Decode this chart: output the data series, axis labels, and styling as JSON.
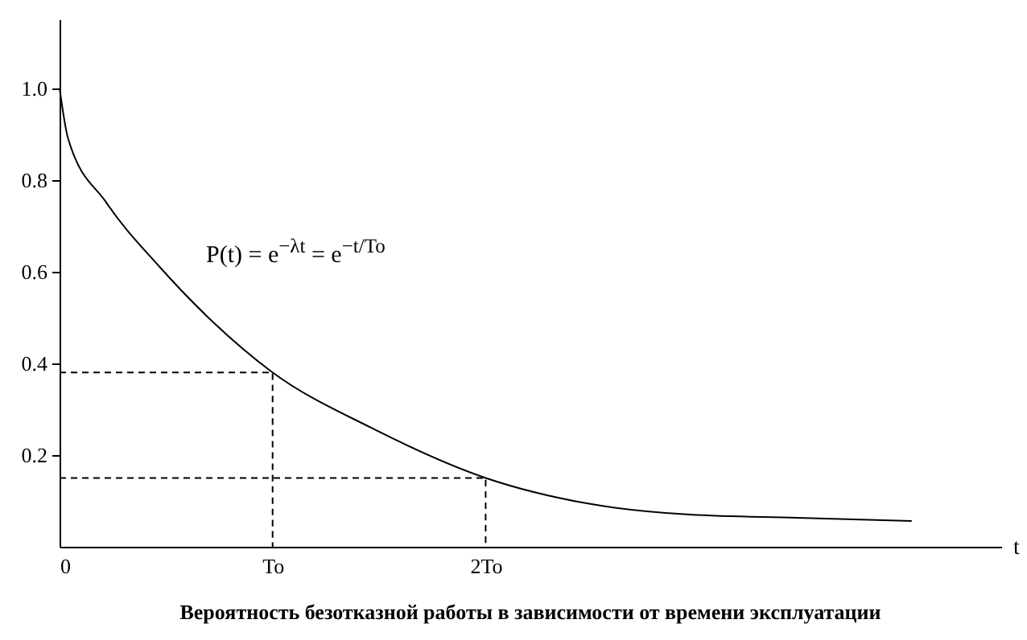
{
  "chart_data": {
    "type": "line",
    "title": "Вероятность безотказной работы в зависимости от времени эксплуатации",
    "xlabel": "t",
    "annotations": [
      "P(t) = e$^{−λt}$ = e$^{−t/To}$"
    ],
    "xlim": [
      0,
      4.42
    ],
    "ylim": [
      0,
      1.15
    ],
    "xticks": [
      {
        "value": 0,
        "label": "0"
      },
      {
        "value": 1,
        "label": "To"
      },
      {
        "value": 2,
        "label": "2To"
      }
    ],
    "yticks": [
      0.2,
      0.4,
      0.6,
      {
        "value": 0.8,
        "label": "0.8"
      },
      {
        "value": 1,
        "label": "1.0"
      }
    ],
    "series": [
      {
        "color": "#000000",
        "x": [
          0,
          0.04,
          0.22,
          0.47,
          0.72,
          1,
          1.46,
          2,
          2.47,
          2.96,
          3.46,
          4
        ],
        "values": [
          1,
          0.89,
          0.75,
          0.61,
          0.49,
          0.38,
          0.26,
          0.15,
          0.095,
          0.07,
          0.063,
          0.056
        ]
      },
      {
        "color": "#000000",
        "line_style": "dashed",
        "x": [
          0,
          1,
          1
        ],
        "values": [
          0.38,
          0.38,
          0
        ]
      },
      {
        "color": "#000000",
        "line_style": "dashed",
        "x": [
          0,
          2,
          2
        ],
        "values": [
          0.15,
          0.15,
          0
        ]
      }
    ]
  }
}
